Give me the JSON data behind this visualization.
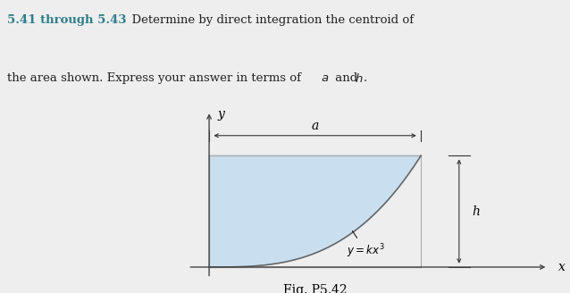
{
  "bg_color": "#eeeeee",
  "page_color": "#f5f5f5",
  "title_number": "5.41 through 5.43",
  "title_number_color": "#2e7d8a",
  "fig_label": "Fig. P5.42",
  "curve_label": "$y = kx^3$",
  "dim_a_label": "a",
  "dim_h_label": "h",
  "axis_x_label": "x",
  "axis_y_label": "y",
  "fill_color": "#c9dff0",
  "fill_alpha": 1.0,
  "border_color": "#aaaaaa",
  "arrow_color": "#333333",
  "curve_color": "#666666",
  "axis_color": "#444444",
  "text_color": "#222222"
}
